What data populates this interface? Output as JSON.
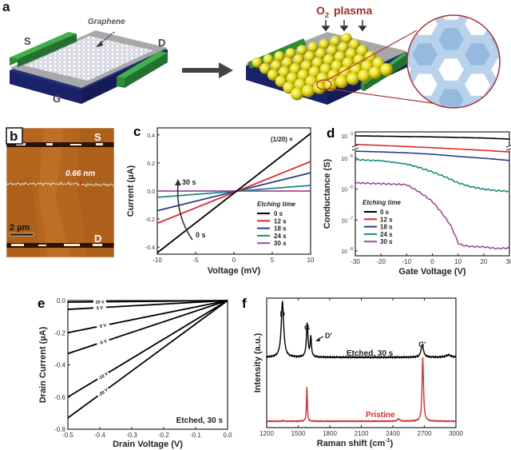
{
  "figure": {
    "panel_labels": {
      "a": "a",
      "b": "b",
      "c": "c",
      "d": "d",
      "e": "e",
      "f": "f"
    },
    "schematic": {
      "source_label": "S",
      "drain_label": "D",
      "gate_label": "G",
      "graphene_label": "Graphene",
      "plasma_label_main": "O",
      "plasma_label_sub": "2",
      "plasma_label_rest": "plasma",
      "colors": {
        "electrode": "#2e8b3a",
        "substrate": "#1f2a7a",
        "oxide": "#9a9a9a",
        "spheres": "#e8e020",
        "plasma_text": "#a0302a",
        "zoom_circle": "#b03030",
        "lattice": "#8fb6dd"
      }
    },
    "afm": {
      "source_label": "S",
      "drain_label": "D",
      "height_label": "0.66 nm",
      "scalebar_label": "2 µm",
      "colors": {
        "background": "#b5661e",
        "marker": "#e02020"
      }
    }
  },
  "chart_data": [
    {
      "id": "c",
      "type": "line",
      "title": "",
      "xlabel": "Voltage (mV)",
      "ylabel": "Current (µA)",
      "xlim": [
        -10,
        10
      ],
      "ylim": [
        -0.45,
        0.45
      ],
      "xticks": [
        -10,
        -5,
        0,
        5,
        10
      ],
      "yticks": [
        -0.4,
        -0.2,
        0.0,
        0.2,
        0.4
      ],
      "ytick_labels": [
        "-0.4",
        "-0.2",
        "0.0",
        "0.2",
        "0.4"
      ],
      "annotations": [
        {
          "text": "(1/20) ×",
          "near": "0 s line top-right"
        },
        {
          "text": "30 s",
          "near": "arrow head"
        },
        {
          "text": "0 s",
          "near": "arrow tail"
        }
      ],
      "legend": {
        "title": "Etching time",
        "position": "bottom-right"
      },
      "series": [
        {
          "name": "0 s",
          "color": "#000000",
          "x": [
            -10,
            10
          ],
          "y": [
            -0.44,
            0.41
          ]
        },
        {
          "name": "12 s",
          "color": "#e02828",
          "x": [
            -10,
            10
          ],
          "y": [
            -0.23,
            0.21
          ]
        },
        {
          "name": "18 s",
          "color": "#2a3a8a",
          "x": [
            -10,
            10
          ],
          "y": [
            -0.14,
            0.13
          ]
        },
        {
          "name": "24 s",
          "color": "#1a8a80",
          "x": [
            -10,
            10
          ],
          "y": [
            -0.045,
            0.04
          ]
        },
        {
          "name": "30 s",
          "color": "#a04a9a",
          "x": [
            -10,
            10
          ],
          "y": [
            0.0,
            0.0
          ]
        }
      ]
    },
    {
      "id": "d",
      "type": "line",
      "title": "",
      "xlabel": "Gate Voltage (V)",
      "ylabel": "Conductance (S)",
      "xlim": [
        -30,
        30
      ],
      "yscale": "log (broken axis)",
      "ylim": [
        1e-08,
        0.001
      ],
      "xticks": [
        -30,
        -20,
        -10,
        0,
        10,
        20,
        30
      ],
      "yticks": [
        "10^-3",
        "10^-5",
        "10^-6",
        "10^-7",
        "10^-8"
      ],
      "ytick_labels": [
        {
          "base": "10",
          "exp": "-3"
        },
        {
          "base": "10",
          "exp": "-5"
        },
        {
          "base": "10",
          "exp": "-6"
        },
        {
          "base": "10",
          "exp": "-7"
        },
        {
          "base": "10",
          "exp": "-8"
        }
      ],
      "legend": {
        "title": "Etching time",
        "position": "bottom-left"
      },
      "series": [
        {
          "name": "0 s",
          "color": "#000000",
          "x": [
            -30,
            -20,
            -10,
            0,
            10,
            20,
            30
          ],
          "y": [
            0.001,
            0.00097,
            0.00093,
            0.0009,
            0.00085,
            0.0008,
            0.00072
          ]
        },
        {
          "name": "12 s",
          "color": "#e02828",
          "x": [
            -30,
            -20,
            -10,
            0,
            10,
            20,
            30
          ],
          "y": [
            2.8e-05,
            2.6e-05,
            2.4e-05,
            2.2e-05,
            2e-05,
            1.8e-05,
            1.6e-05
          ]
        },
        {
          "name": "18 s",
          "color": "#2a3a8a",
          "x": [
            -30,
            -20,
            -10,
            0,
            10,
            20,
            30
          ],
          "y": [
            1.7e-05,
            1.6e-05,
            1.5e-05,
            1.35e-05,
            1.15e-05,
            1e-05,
            8.5e-06
          ]
        },
        {
          "name": "24 s",
          "color": "#1a8a80",
          "x": [
            -30,
            -20,
            -10,
            -5,
            0,
            5,
            10,
            15,
            20,
            25,
            30
          ],
          "y": [
            9e-06,
            8.3e-06,
            6.5e-06,
            5e-06,
            3.6e-06,
            2.5e-06,
            1.6e-06,
            1.2e-06,
            1e-06,
            9e-07,
            8.5e-07
          ]
        },
        {
          "name": "30 s",
          "color": "#a04a9a",
          "x": [
            -30,
            -20,
            -10,
            -5,
            0,
            3,
            5,
            7,
            9,
            10,
            12,
            15,
            20,
            25,
            30
          ],
          "y": [
            1.6e-06,
            1.5e-06,
            1.4e-06,
            8e-07,
            4e-07,
            2e-07,
            1.2e-07,
            7e-08,
            3e-08,
            1.8e-08,
            1.5e-08,
            1.4e-08,
            1.35e-08,
            1.2e-08,
            1.25e-08
          ]
        }
      ]
    },
    {
      "id": "e",
      "type": "line",
      "title": "",
      "xlabel": "Drain Voltage (V)",
      "ylabel": "Drain Current (µA)",
      "xlim": [
        -0.5,
        0.0
      ],
      "ylim": [
        -0.8,
        0.0
      ],
      "xticks": [
        -0.5,
        -0.4,
        -0.3,
        -0.2,
        -0.1,
        0.0
      ],
      "xtick_labels": [
        "-0.5",
        "-0.4",
        "-0.3",
        "-0.2",
        "-0.1",
        "0.0"
      ],
      "yticks": [
        -0.8,
        -0.6,
        -0.4,
        -0.2,
        0.0
      ],
      "ytick_labels": [
        "-0.8",
        "-0.6",
        "-0.4",
        "-0.2",
        "0.0"
      ],
      "annotations": [
        {
          "text": "Etched, 30 s",
          "position": "bottom-right"
        }
      ],
      "series": [
        {
          "name": "10 V",
          "color": "#000000",
          "x": [
            -0.5,
            0.0
          ],
          "y": [
            -0.01,
            0.0
          ]
        },
        {
          "name": "5 V",
          "color": "#000000",
          "x": [
            -0.5,
            0.0
          ],
          "y": [
            -0.055,
            0.0
          ]
        },
        {
          "name": "0 V",
          "color": "#000000",
          "x": [
            -0.5,
            0.0
          ],
          "y": [
            -0.2,
            0.0
          ]
        },
        {
          "name": "-5 V",
          "color": "#000000",
          "x": [
            -0.5,
            0.0
          ],
          "y": [
            -0.33,
            0.0
          ]
        },
        {
          "name": "-10 V",
          "color": "#000000",
          "x": [
            -0.5,
            0.0
          ],
          "y": [
            -0.6,
            0.0
          ]
        },
        {
          "name": "-20 V",
          "color": "#000000",
          "x": [
            -0.5,
            0.0
          ],
          "y": [
            -0.73,
            0.0
          ]
        }
      ]
    },
    {
      "id": "f",
      "type": "line",
      "title": "",
      "xlabel": "Raman shift (cm",
      "xlabel_sup": "-1",
      "xlabel_end": ")",
      "ylabel": "Intensity (a.u.)",
      "xlim": [
        1200,
        3000
      ],
      "xticks": [
        1200,
        1500,
        1800,
        2100,
        2400,
        2700,
        3000
      ],
      "annotations": [
        {
          "text": "D",
          "x": 1350
        },
        {
          "text": "G",
          "x": 1585
        },
        {
          "text": "D'",
          "x": 1620
        },
        {
          "text": "G'",
          "x": 2680
        },
        {
          "text": "Etched, 30 s",
          "series": "Etched, 30 s"
        },
        {
          "text": "Pristine",
          "series": "Pristine"
        }
      ],
      "series": [
        {
          "name": "Etched, 30 s",
          "color": "#000000",
          "peaks": [
            {
              "x": 1350,
              "height": 1.0,
              "width": 28
            },
            {
              "x": 1585,
              "height": 0.6,
              "width": 18
            },
            {
              "x": 1620,
              "height": 0.35,
              "width": 14
            },
            {
              "x": 2680,
              "height": 0.22,
              "width": 28
            },
            {
              "x": 2930,
              "height": 0.04,
              "width": 60
            }
          ],
          "baseline": 0.0
        },
        {
          "name": "Pristine",
          "color": "#d03030",
          "peaks": [
            {
              "x": 1350,
              "height": 0.02,
              "width": 10
            },
            {
              "x": 1582,
              "height": 0.9,
              "width": 9
            },
            {
              "x": 2455,
              "height": 0.06,
              "width": 25
            },
            {
              "x": 2685,
              "height": 1.6,
              "width": 16
            }
          ],
          "baseline": 0.0
        }
      ]
    }
  ]
}
